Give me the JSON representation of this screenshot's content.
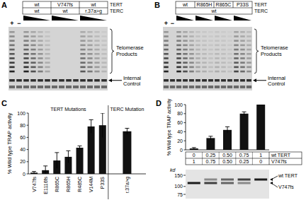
{
  "chart_data": [
    {
      "type": "bar",
      "panel": "C",
      "y_label": "% Wild type TRAP activity",
      "categories": [
        "V747fs",
        "E1116fs",
        "R865C",
        "R865H",
        "R485C",
        "V144M",
        "P33S",
        "r.37a>g"
      ],
      "values": [
        2,
        6,
        22,
        28,
        43,
        78,
        80,
        70
      ],
      "errors": [
        2,
        7,
        13,
        10,
        3,
        11,
        20,
        5
      ],
      "groups": [
        {
          "label": "TERT Mutations",
          "count": 7
        },
        {
          "label": "TERC Mutation",
          "count": 1
        }
      ],
      "color": "#111111",
      "ylim": [
        0,
        100
      ],
      "yticks": [
        0,
        20,
        40,
        60,
        80,
        100
      ]
    },
    {
      "type": "bar",
      "panel": "D",
      "y_label": "% Wild type TRAP activity",
      "categories": [
        null,
        null,
        null,
        null,
        null
      ],
      "values": [
        3,
        26,
        44,
        80,
        100
      ],
      "errors": [
        2,
        4,
        7,
        4,
        0
      ],
      "color": "#111111",
      "ylim": [
        0,
        100
      ],
      "yticks": [
        0,
        20,
        40,
        60,
        80,
        100
      ],
      "table": [
        {
          "label": "wt TERT",
          "cells": [
            "0",
            "0.25",
            "0.50",
            "0.75",
            "1"
          ]
        },
        {
          "label": "V747fs",
          "cells": [
            "1",
            "0.75",
            "0.50",
            "0.25",
            "0"
          ]
        }
      ],
      "blot": {
        "unit": "kd",
        "markers": [
          150,
          100,
          75
        ],
        "bands": [
          "wt TERT",
          "V747fs"
        ]
      }
    }
  ],
  "gels": [
    {
      "panel": "A",
      "rows": [
        {
          "label": "TERT",
          "cells": [
            "wt",
            "V747fs",
            "wt"
          ]
        },
        {
          "label": "TERC",
          "cells": [
            "wt",
            "wt",
            "r.37a>g"
          ]
        }
      ],
      "controls": [
        "+",
        "−"
      ],
      "products": "Telomerase Products",
      "control_label": "Internal Control"
    },
    {
      "panel": "B",
      "rows": [
        {
          "label": "TERT",
          "cells": [
            "wt",
            "R865H",
            "R865C",
            "P33S"
          ]
        },
        {
          "label": "TERC",
          "cells": [
            "wt"
          ]
        }
      ],
      "controls": [
        "+",
        "−"
      ],
      "products": "Telomerase Products",
      "control_label": "Internal Control"
    }
  ]
}
